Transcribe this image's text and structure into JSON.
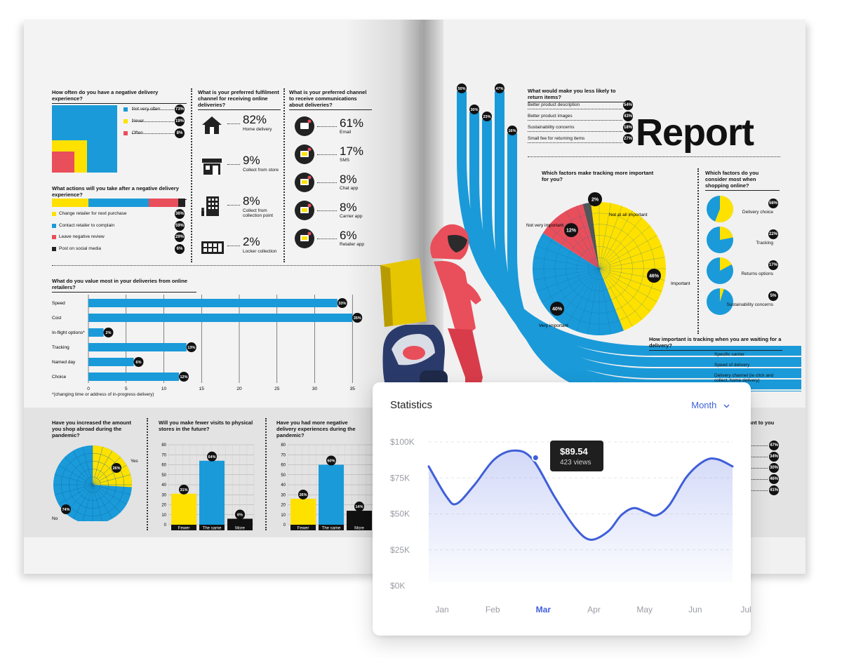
{
  "magazine": {
    "report_title": "Report",
    "negative_frequency": {
      "title": "How often do you have a negative delivery experience?",
      "items": [
        {
          "label": "Not very often",
          "value": "73%",
          "color": "#1a9ad9"
        },
        {
          "label": "Never",
          "value": "19%",
          "color": "#ffe100"
        },
        {
          "label": "Often",
          "value": "8%",
          "color": "#e94e5b"
        }
      ]
    },
    "actions_after": {
      "title": "What actions will you take after a negative delivery experience?",
      "items": [
        {
          "label": "Change retailer for next purchase",
          "value": "36%",
          "color": "#ffe100"
        },
        {
          "label": "Contact retailer to complain",
          "value": "59%",
          "color": "#1a9ad9"
        },
        {
          "label": "Leave negative review",
          "value": "29%",
          "color": "#e94e5b"
        },
        {
          "label": "Post on social media",
          "value": "6%",
          "color": "#222222"
        }
      ]
    },
    "fulfilment": {
      "title": "What is your preferred fulfilment channel for receiving online deliveries?",
      "items": [
        {
          "value": "82%",
          "label": "Home delivery",
          "icon": "house-icon"
        },
        {
          "value": "9%",
          "label": "Collect from store",
          "icon": "store-icon"
        },
        {
          "value": "8%",
          "label": "Collect from collection point",
          "icon": "building-icon"
        },
        {
          "value": "2%",
          "label": "Locker collection",
          "icon": "locker-icon"
        }
      ]
    },
    "comms": {
      "title": "What is your preferred channel to receive communications about deliveries?",
      "items": [
        {
          "value": "61%",
          "label": "Email",
          "icon": "email-icon"
        },
        {
          "value": "17%",
          "label": "SMS",
          "icon": "sms-icon"
        },
        {
          "value": "8%",
          "label": "Chat app",
          "icon": "chat-icon"
        },
        {
          "value": "8%",
          "label": "Carrier app",
          "icon": "carrier-app-icon"
        },
        {
          "value": "6%",
          "label": "Retailer app",
          "icon": "retailer-app-icon"
        }
      ]
    },
    "value_most": {
      "title": "What do you value most in your deliveries from online retailers?",
      "footnote": "*(changing time or address of in-progress delivery)",
      "chart_data": {
        "type": "bar",
        "orientation": "horizontal",
        "categories": [
          "Speed",
          "Cost",
          "In-flight options*",
          "Tracking",
          "Named day",
          "Choice"
        ],
        "values": [
          33,
          35,
          2,
          13,
          6,
          12
        ],
        "value_labels": [
          "33%",
          "35%",
          "2%",
          "13%",
          "6%",
          "12%"
        ],
        "xlim": [
          0,
          40
        ],
        "x_ticks": [
          "0",
          "5",
          "10",
          "15",
          "20",
          "25",
          "30",
          "35",
          "4"
        ],
        "color": "#1a9ad9"
      }
    },
    "abroad": {
      "title": "Have you increased the amount you shop abroad during the pandemic?",
      "yes": "Yes",
      "no": "No",
      "yes_value": "26%",
      "no_value": "74%"
    },
    "fewer_visits": {
      "title": "Will you make fewer visits to physical stores in the future?",
      "chart_data": {
        "type": "bar",
        "categories": [
          "Fewer",
          "The same",
          "More"
        ],
        "values": [
          31,
          64,
          6
        ],
        "value_labels": [
          "31%",
          "64%",
          "6%"
        ],
        "colors": [
          "#ffe100",
          "#1a9ad9",
          "#111111"
        ],
        "ylim": [
          0,
          80
        ],
        "y_ticks": [
          "0",
          "10",
          "20",
          "30",
          "40",
          "50",
          "60",
          "70",
          "80"
        ]
      }
    },
    "more_negative": {
      "title": "Have you had more negative delivery experiences during the pandemic?",
      "chart_data": {
        "type": "bar",
        "categories": [
          "Fewer",
          "The same",
          "More"
        ],
        "values": [
          26,
          60,
          14
        ],
        "value_labels": [
          "26%",
          "60%",
          "14%"
        ],
        "colors": [
          "#ffe100",
          "#1a9ad9",
          "#111111"
        ],
        "ylim": [
          0,
          80
        ],
        "y_ticks": [
          "0",
          "10",
          "20",
          "30",
          "40",
          "50",
          "60",
          "70",
          "80"
        ]
      }
    },
    "right_bars": [
      "50%",
      "30%",
      "23%",
      "47%",
      "16%"
    ],
    "returns": {
      "title": "What would make you less likely to return items?",
      "items": [
        {
          "label": "Better product description",
          "value": "54%"
        },
        {
          "label": "Better product images",
          "value": "43%"
        },
        {
          "label": "Sustainability concerns",
          "value": "18%"
        },
        {
          "label": "Small fee for returning items",
          "value": "27%"
        }
      ]
    },
    "tracking_factors": {
      "title": "Which factors make tracking more important for you?",
      "chart_data": {
        "type": "pie",
        "labels": [
          "Important",
          "Very important",
          "Not very important",
          "Not at all important"
        ],
        "values": [
          46,
          40,
          12,
          2
        ],
        "value_labels": [
          "46%",
          "40%",
          "12%",
          "2%"
        ],
        "colors": [
          "#ffe100",
          "#1a9ad9",
          "#e94e5b",
          "#555555"
        ]
      }
    },
    "shopping_factors": {
      "title": "Which factors do you consider most when shopping online?",
      "items": [
        {
          "label": "Delivery choice",
          "value": "56%",
          "fraction": 0.56
        },
        {
          "label": "Tracking",
          "value": "22%",
          "fraction": 0.22
        },
        {
          "label": "Returns options",
          "value": "17%",
          "fraction": 0.17
        },
        {
          "label": "Sustainability concerns",
          "value": "5%",
          "fraction": 0.05
        }
      ]
    },
    "tracking_wait": {
      "title": "How important is tracking when you are waiting for a delivery?",
      "items": [
        "Specific carrier",
        "Speed of delivery",
        "Delivery channel (ie click and collect, home delivery)"
      ]
    },
    "partial_right": {
      "title": "rtant to you",
      "values": [
        "47%",
        "34%",
        "30%",
        "46%",
        "41%"
      ]
    }
  },
  "stats_card": {
    "title": "Statistics",
    "period": "Month",
    "tooltip_price": "$89.54",
    "tooltip_views": "423 views",
    "chart_data": {
      "type": "area",
      "x": [
        "Jan",
        "Feb",
        "Mar",
        "Apr",
        "May",
        "Jun",
        "Jul"
      ],
      "highlight_x": "Mar",
      "y_ticks": [
        "$100K",
        "$75K",
        "$50K",
        "$25K",
        "$0K"
      ],
      "ylim": [
        0,
        100000
      ],
      "series": [
        {
          "values": [
            [
              0.0,
              83000
            ],
            [
              0.35,
              62000
            ],
            [
              0.55,
              57000
            ],
            [
              0.9,
              70000
            ],
            [
              1.3,
              88000
            ],
            [
              1.7,
              94000
            ],
            [
              2.05,
              88000
            ],
            [
              2.5,
              61000
            ],
            [
              2.9,
              40000
            ],
            [
              3.2,
              32000
            ],
            [
              3.55,
              38000
            ],
            [
              3.8,
              49000
            ],
            [
              4.05,
              54000
            ],
            [
              4.3,
              51000
            ],
            [
              4.5,
              49000
            ],
            [
              4.75,
              56000
            ],
            [
              5.1,
              76000
            ],
            [
              5.45,
              87000
            ],
            [
              5.7,
              88000
            ],
            [
              6.0,
              83000
            ]
          ],
          "color": "#3f5fd8"
        }
      ],
      "highlight_point": [
        2.0,
        90000
      ]
    }
  }
}
